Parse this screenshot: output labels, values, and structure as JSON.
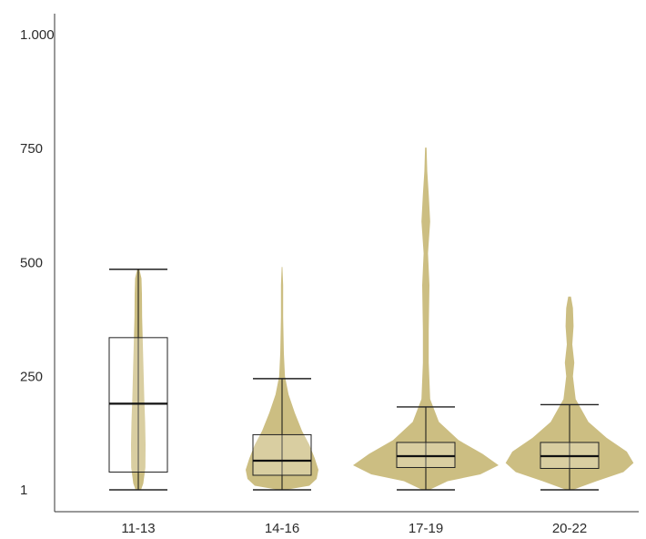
{
  "chart_data": {
    "type": "violin",
    "title": "",
    "xlabel": "",
    "ylabel": "",
    "ylim": [
      1,
      1000
    ],
    "y_ticks": [
      {
        "value": 1,
        "label": "1"
      },
      {
        "value": 250,
        "label": "250"
      },
      {
        "value": 500,
        "label": "500"
      },
      {
        "value": 750,
        "label": "750"
      },
      {
        "value": 1000,
        "label": "1.000"
      }
    ],
    "fill_color": "#c8b877",
    "categories": [
      "11-13",
      "14-16",
      "17-19",
      "20-22"
    ],
    "groups": [
      {
        "category": "11-13",
        "whisker_low": 1,
        "q1": 40,
        "median": 190,
        "q3": 335,
        "whisker_high": 485,
        "density": [
          {
            "y": 1,
            "w": 0.3
          },
          {
            "y": 15,
            "w": 0.55
          },
          {
            "y": 50,
            "w": 0.78
          },
          {
            "y": 100,
            "w": 0.8
          },
          {
            "y": 150,
            "w": 0.75
          },
          {
            "y": 200,
            "w": 0.66
          },
          {
            "y": 260,
            "w": 0.58
          },
          {
            "y": 320,
            "w": 0.5
          },
          {
            "y": 380,
            "w": 0.42
          },
          {
            "y": 430,
            "w": 0.4
          },
          {
            "y": 465,
            "w": 0.35
          },
          {
            "y": 485,
            "w": 0.12
          }
        ]
      },
      {
        "category": "14-16",
        "whisker_low": 1,
        "q1": 33,
        "median": 65,
        "q3": 122,
        "whisker_high": 245,
        "density": [
          {
            "y": 1,
            "w": 0.1
          },
          {
            "y": 10,
            "w": 0.75
          },
          {
            "y": 25,
            "w": 0.95
          },
          {
            "y": 45,
            "w": 1.0
          },
          {
            "y": 70,
            "w": 0.9
          },
          {
            "y": 100,
            "w": 0.75
          },
          {
            "y": 130,
            "w": 0.55
          },
          {
            "y": 170,
            "w": 0.35
          },
          {
            "y": 210,
            "w": 0.18
          },
          {
            "y": 250,
            "w": 0.08
          },
          {
            "y": 300,
            "w": 0.05
          },
          {
            "y": 380,
            "w": 0.03
          },
          {
            "y": 450,
            "w": 0.03
          },
          {
            "y": 490,
            "w": 0.01
          }
        ]
      },
      {
        "category": "17-19",
        "whisker_low": 1,
        "q1": 50,
        "median": 75,
        "q3": 105,
        "whisker_high": 183,
        "density": [
          {
            "y": 1,
            "w": 0.05
          },
          {
            "y": 20,
            "w": 0.3
          },
          {
            "y": 35,
            "w": 0.75
          },
          {
            "y": 55,
            "w": 1.0
          },
          {
            "y": 80,
            "w": 0.78
          },
          {
            "y": 110,
            "w": 0.45
          },
          {
            "y": 150,
            "w": 0.18
          },
          {
            "y": 200,
            "w": 0.06
          },
          {
            "y": 280,
            "w": 0.04
          },
          {
            "y": 350,
            "w": 0.04
          },
          {
            "y": 450,
            "w": 0.05
          },
          {
            "y": 520,
            "w": 0.03
          },
          {
            "y": 590,
            "w": 0.06
          },
          {
            "y": 650,
            "w": 0.04
          },
          {
            "y": 700,
            "w": 0.02
          },
          {
            "y": 752,
            "w": 0.01
          }
        ]
      },
      {
        "category": "20-22",
        "whisker_low": 1,
        "q1": 48,
        "median": 75,
        "q3": 105,
        "whisker_high": 188,
        "density": [
          {
            "y": 1,
            "w": 0.05
          },
          {
            "y": 20,
            "w": 0.4
          },
          {
            "y": 40,
            "w": 0.8
          },
          {
            "y": 60,
            "w": 0.95
          },
          {
            "y": 85,
            "w": 0.85
          },
          {
            "y": 115,
            "w": 0.55
          },
          {
            "y": 150,
            "w": 0.28
          },
          {
            "y": 200,
            "w": 0.09
          },
          {
            "y": 250,
            "w": 0.05
          },
          {
            "y": 280,
            "w": 0.07
          },
          {
            "y": 320,
            "w": 0.04
          },
          {
            "y": 360,
            "w": 0.06
          },
          {
            "y": 400,
            "w": 0.05
          },
          {
            "y": 425,
            "w": 0.02
          }
        ]
      }
    ],
    "grid": false,
    "legend": "none"
  }
}
